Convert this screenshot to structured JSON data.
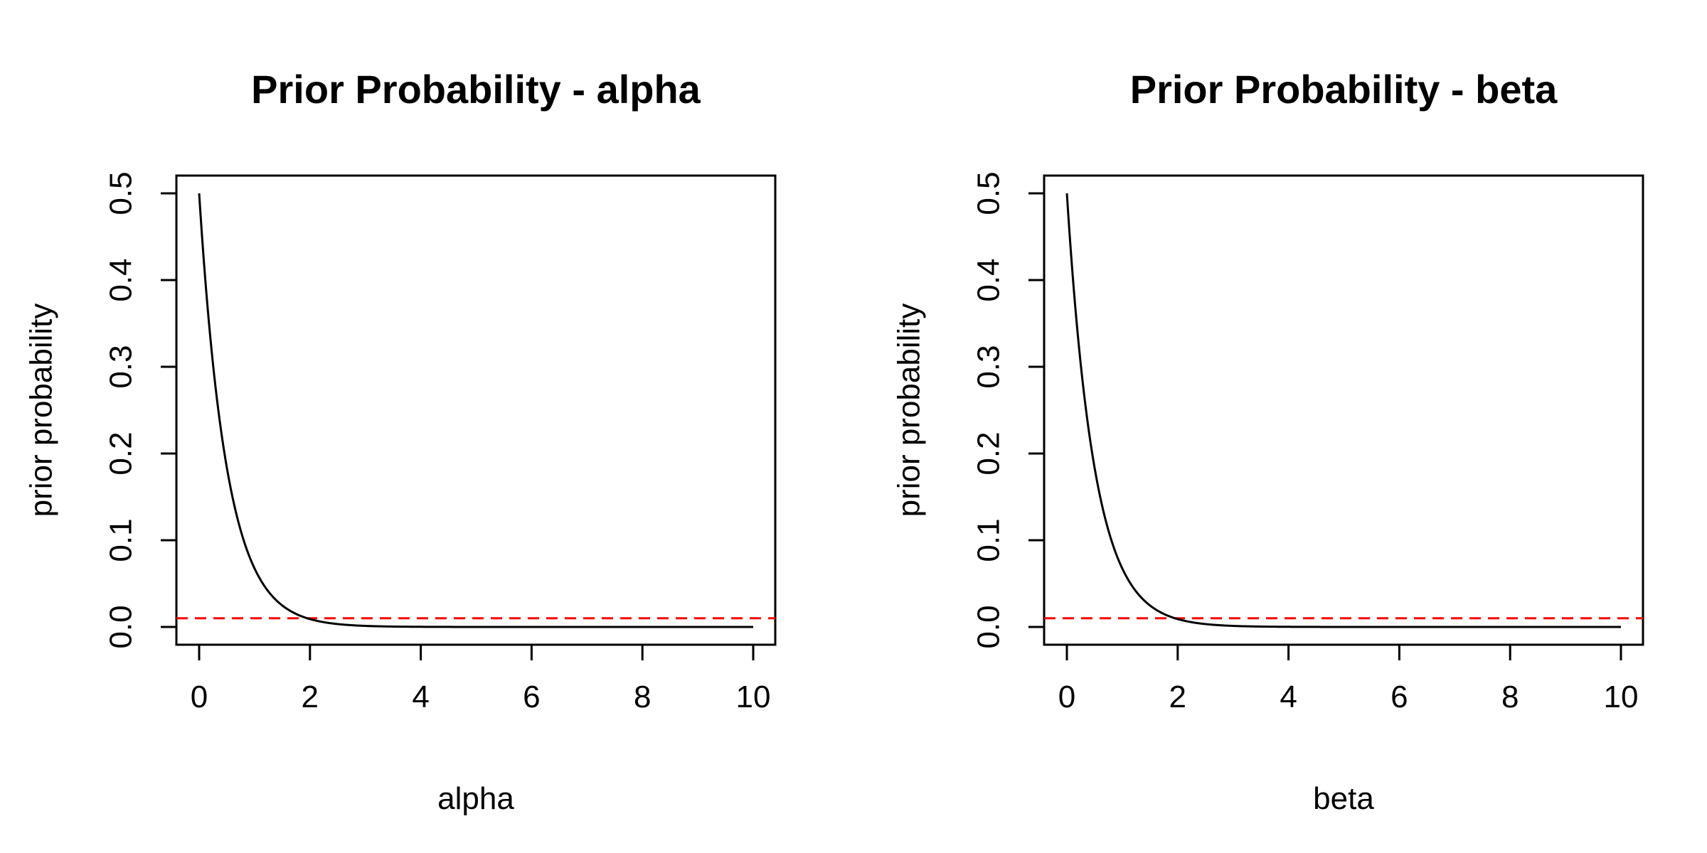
{
  "chart_data": [
    {
      "type": "line",
      "title": "Prior Probability - alpha",
      "xlabel": "alpha",
      "ylabel": "prior probability",
      "xlim": [
        0,
        10
      ],
      "ylim": [
        0,
        0.5
      ],
      "x_ticks": [
        0,
        2,
        4,
        6,
        8,
        10
      ],
      "y_ticks": [
        0.0,
        0.1,
        0.2,
        0.3,
        0.4,
        0.5
      ],
      "x_tick_labels": [
        "0",
        "2",
        "4",
        "6",
        "8",
        "10"
      ],
      "y_tick_labels": [
        "0.0",
        "0.1",
        "0.2",
        "0.3",
        "0.4",
        "0.5"
      ],
      "grid": false,
      "series": [
        {
          "color": "#000000",
          "style": "solid",
          "x": [
            0,
            0.25,
            0.5,
            0.75,
            1,
            1.25,
            1.5,
            1.75,
            2,
            2.5,
            3,
            3.5,
            4,
            4.5,
            5,
            6,
            7,
            8,
            9,
            10
          ],
          "y": [
            0.5,
            0.303,
            0.184,
            0.112,
            0.068,
            0.041,
            0.025,
            0.015,
            0.009,
            0.0034,
            0.0012,
            0.00045,
            0.00017,
            6e-05,
            2e-05,
            3e-06,
            4e-07,
            6e-08,
            1e-08,
            0.0
          ]
        }
      ],
      "reference_lines": [
        {
          "y": 0.01,
          "color": "#ff0000",
          "style": "dashed"
        }
      ]
    },
    {
      "type": "line",
      "title": "Prior Probability - beta",
      "xlabel": "beta",
      "ylabel": "prior probability",
      "xlim": [
        0,
        10
      ],
      "ylim": [
        0,
        0.5
      ],
      "x_ticks": [
        0,
        2,
        4,
        6,
        8,
        10
      ],
      "y_ticks": [
        0.0,
        0.1,
        0.2,
        0.3,
        0.4,
        0.5
      ],
      "x_tick_labels": [
        "0",
        "2",
        "4",
        "6",
        "8",
        "10"
      ],
      "y_tick_labels": [
        "0.0",
        "0.1",
        "0.2",
        "0.3",
        "0.4",
        "0.5"
      ],
      "grid": false,
      "series": [
        {
          "color": "#000000",
          "style": "solid",
          "x": [
            0,
            0.25,
            0.5,
            0.75,
            1,
            1.25,
            1.5,
            1.75,
            2,
            2.5,
            3,
            3.5,
            4,
            4.5,
            5,
            6,
            7,
            8,
            9,
            10
          ],
          "y": [
            0.5,
            0.303,
            0.184,
            0.112,
            0.068,
            0.041,
            0.025,
            0.015,
            0.009,
            0.0034,
            0.0012,
            0.00045,
            0.00017,
            6e-05,
            2e-05,
            3e-06,
            4e-07,
            6e-08,
            1e-08,
            0.0
          ]
        }
      ],
      "reference_lines": [
        {
          "y": 0.01,
          "color": "#ff0000",
          "style": "dashed"
        }
      ]
    }
  ]
}
